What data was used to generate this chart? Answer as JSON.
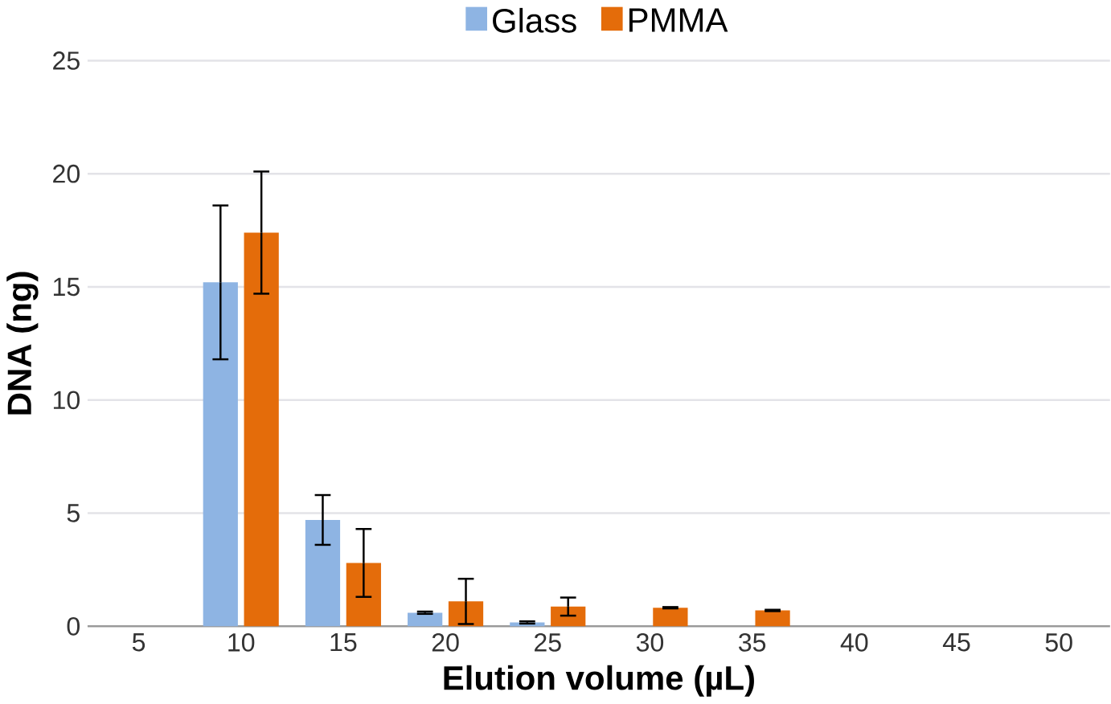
{
  "chart_data": {
    "type": "bar",
    "xlabel": "Elution volume (µL)",
    "ylabel": "DNA (ng)",
    "categories": [
      "5",
      "10",
      "15",
      "20",
      "25",
      "30",
      "35",
      "40",
      "45",
      "50"
    ],
    "series": [
      {
        "name": "Glass",
        "color": "#8eb4e3",
        "values": [
          0,
          15.2,
          4.7,
          0.6,
          0.17,
          0,
          0,
          0,
          0,
          0
        ],
        "errors": [
          null,
          3.4,
          1.1,
          0.05,
          0.05,
          null,
          null,
          null,
          null,
          null
        ]
      },
      {
        "name": "PMMA",
        "color": "#e46c0a",
        "values": [
          0,
          17.4,
          2.8,
          1.1,
          0.87,
          0.82,
          0.7,
          0,
          0,
          0
        ],
        "errors": [
          null,
          2.7,
          1.5,
          1.0,
          0.4,
          0.03,
          0.03,
          null,
          null,
          null
        ]
      }
    ],
    "ylim": [
      0,
      25
    ],
    "yticks": [
      0,
      5,
      10,
      15,
      20,
      25
    ],
    "grid": "y",
    "legend": "top"
  }
}
